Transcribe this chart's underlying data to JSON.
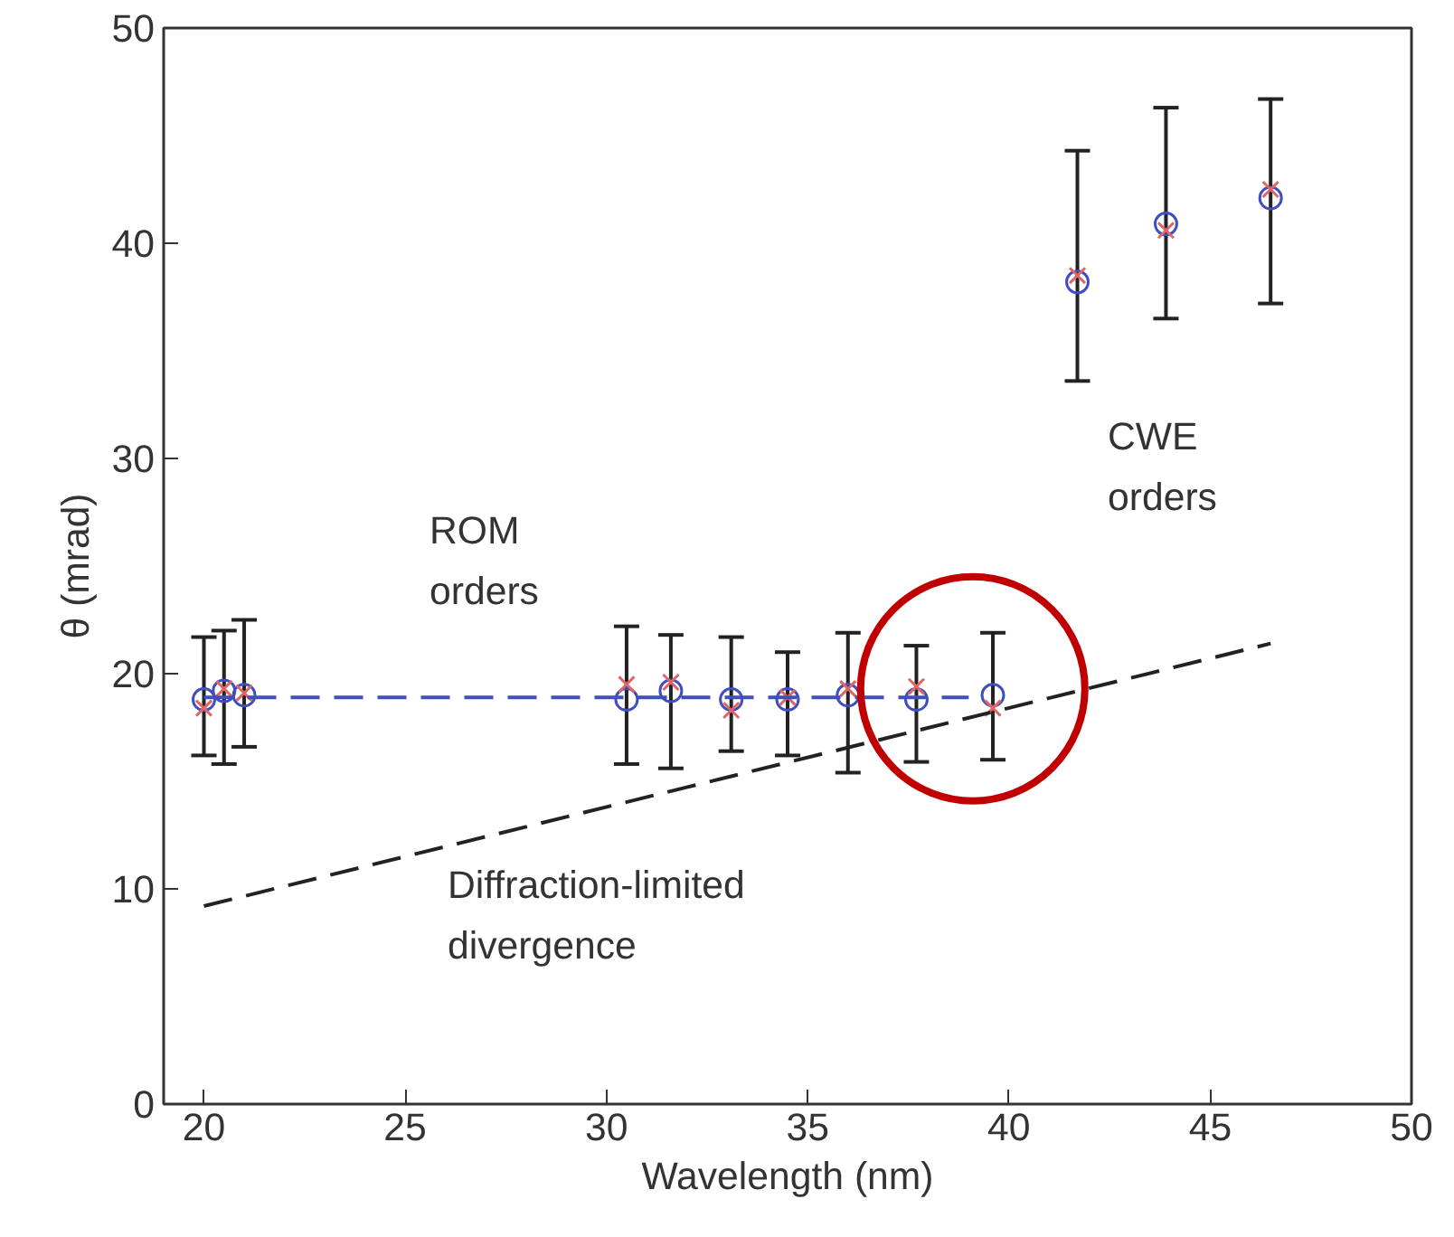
{
  "chart_data": {
    "type": "scatter",
    "xlabel": "Wavelength (nm)",
    "ylabel": "θ (mrad)",
    "xlim": [
      19,
      50
    ],
    "xticks": [
      20,
      25,
      30,
      35,
      40,
      45,
      50
    ],
    "ylim": [
      0,
      50
    ],
    "yticks": [
      0,
      10,
      20,
      30,
      40,
      50
    ],
    "grid": false,
    "x": [
      20.0,
      20.5,
      21.0,
      30.5,
      31.6,
      33.1,
      34.5,
      36.0,
      37.7,
      39.6,
      41.7,
      43.9,
      46.5
    ],
    "series": [
      {
        "marker": "circle",
        "color": "#3f4fbf",
        "values": [
          18.8,
          19.2,
          19.0,
          18.8,
          19.2,
          18.8,
          18.8,
          19.0,
          18.8,
          19.0,
          38.2,
          40.9,
          42.1
        ],
        "errors": [
          [
            16.2,
            21.7
          ],
          [
            15.8,
            22.0
          ],
          [
            16.6,
            22.5
          ],
          [
            15.8,
            22.2
          ],
          [
            15.6,
            21.8
          ],
          [
            16.4,
            21.7
          ],
          [
            16.2,
            21.0
          ],
          [
            15.4,
            21.9
          ],
          [
            15.9,
            21.3
          ],
          [
            16.0,
            21.9
          ],
          [
            33.6,
            44.3
          ],
          [
            36.5,
            46.3
          ],
          [
            37.2,
            46.7
          ]
        ]
      },
      {
        "marker": "cross",
        "color": "#e06666",
        "values": [
          18.4,
          19.3,
          19.1,
          19.5,
          19.6,
          18.3,
          18.9,
          19.3,
          19.4,
          18.4,
          38.5,
          40.6,
          42.5
        ]
      },
      {
        "type": "line",
        "line_style": "dashed",
        "color": "#3f4fbf",
        "x": [
          20.0,
          39.0
        ],
        "values": [
          18.9,
          18.9
        ]
      },
      {
        "type": "line",
        "line_style": "dashed",
        "color": "#222222",
        "x": [
          20.0,
          46.5
        ],
        "values": [
          9.2,
          21.4
        ]
      }
    ],
    "annotations": [
      "ROM\norders",
      "CWE\norders",
      "Diffraction-limited\ndivergence"
    ]
  }
}
